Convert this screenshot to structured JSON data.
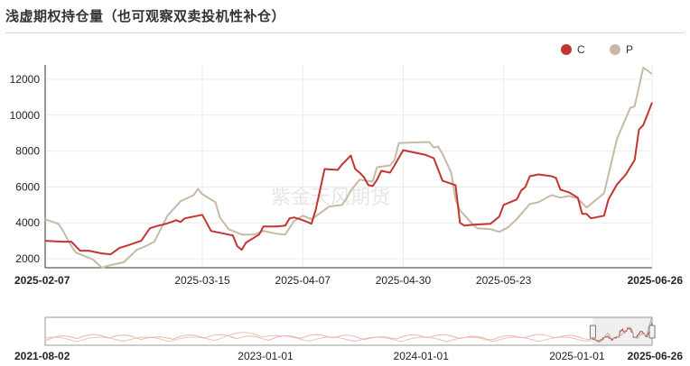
{
  "title": "浅虚期权持仓量（也可观察双卖投机性补仓）",
  "watermark": "紫金天风期货",
  "colors": {
    "C": "#c23531",
    "P": "#c8b9a6"
  },
  "chart_data": {
    "type": "line",
    "title": "浅虚期权持仓量（也可观察双卖投机性补仓）",
    "xlabel": "",
    "ylabel": "",
    "ylim": [
      1500,
      12800
    ],
    "yticks": [
      2000,
      4000,
      6000,
      8000,
      10000,
      12000
    ],
    "xlim": [
      "2025-02-07",
      "2025-06-26"
    ],
    "xticks": [
      "2025-02-07",
      "2025-03-15",
      "2025-04-07",
      "2025-04-30",
      "2025-05-23",
      "2025-06-26"
    ],
    "grid": true,
    "legend_position": "top-right",
    "series": [
      {
        "name": "C",
        "points": [
          [
            "2025-02-07",
            3000
          ],
          [
            "2025-02-11",
            2950
          ],
          [
            "2025-02-13",
            2950
          ],
          [
            "2025-02-14",
            2700
          ],
          [
            "2025-02-15",
            2450
          ],
          [
            "2025-02-17",
            2450
          ],
          [
            "2025-02-20",
            2300
          ],
          [
            "2025-02-22",
            2250
          ],
          [
            "2025-02-24",
            2600
          ],
          [
            "2025-02-26",
            2750
          ],
          [
            "2025-03-01",
            3000
          ],
          [
            "2025-03-03",
            3700
          ],
          [
            "2025-03-05",
            3850
          ],
          [
            "2025-03-06",
            3900
          ],
          [
            "2025-03-08",
            4050
          ],
          [
            "2025-03-09",
            4150
          ],
          [
            "2025-03-10",
            4050
          ],
          [
            "2025-03-11",
            4250
          ],
          [
            "2025-03-15",
            4450
          ],
          [
            "2025-03-17",
            3550
          ],
          [
            "2025-03-19",
            3450
          ],
          [
            "2025-03-22",
            3300
          ],
          [
            "2025-03-23",
            2700
          ],
          [
            "2025-03-24",
            2500
          ],
          [
            "2025-03-25",
            2900
          ],
          [
            "2025-03-28",
            3350
          ],
          [
            "2025-03-29",
            3800
          ],
          [
            "2025-04-01",
            3800
          ],
          [
            "2025-04-03",
            3850
          ],
          [
            "2025-04-04",
            4250
          ],
          [
            "2025-04-05",
            4300
          ],
          [
            "2025-04-07",
            4150
          ],
          [
            "2025-04-09",
            3950
          ],
          [
            "2025-04-10",
            4750
          ],
          [
            "2025-04-12",
            7000
          ],
          [
            "2025-04-15",
            6950
          ],
          [
            "2025-04-16",
            7250
          ],
          [
            "2025-04-18",
            7750
          ],
          [
            "2025-04-19",
            7000
          ],
          [
            "2025-04-20",
            6800
          ],
          [
            "2025-04-21",
            6550
          ],
          [
            "2025-04-22",
            6100
          ],
          [
            "2025-04-23",
            6050
          ],
          [
            "2025-04-24",
            6400
          ],
          [
            "2025-04-25",
            6900
          ],
          [
            "2025-04-27",
            6800
          ],
          [
            "2025-04-28",
            7200
          ],
          [
            "2025-04-30",
            8050
          ],
          [
            "2025-05-05",
            7800
          ],
          [
            "2025-05-07",
            7600
          ],
          [
            "2025-05-09",
            6350
          ],
          [
            "2025-05-12",
            6100
          ],
          [
            "2025-05-13",
            4000
          ],
          [
            "2025-05-14",
            3850
          ],
          [
            "2025-05-16",
            3900
          ],
          [
            "2025-05-20",
            3950
          ],
          [
            "2025-05-22",
            4350
          ],
          [
            "2025-05-23",
            5000
          ],
          [
            "2025-05-26",
            5300
          ],
          [
            "2025-05-27",
            5800
          ],
          [
            "2025-05-28",
            6000
          ],
          [
            "2025-05-29",
            6600
          ],
          [
            "2025-05-31",
            6700
          ],
          [
            "2025-06-03",
            6600
          ],
          [
            "2025-06-04",
            6500
          ],
          [
            "2025-06-05",
            5850
          ],
          [
            "2025-06-07",
            5700
          ],
          [
            "2025-06-09",
            5400
          ],
          [
            "2025-06-10",
            4500
          ],
          [
            "2025-06-11",
            4500
          ],
          [
            "2025-06-12",
            4250
          ],
          [
            "2025-06-15",
            4400
          ],
          [
            "2025-06-16",
            5300
          ],
          [
            "2025-06-18",
            6150
          ],
          [
            "2025-06-20",
            6700
          ],
          [
            "2025-06-22",
            7500
          ],
          [
            "2025-06-23",
            9200
          ],
          [
            "2025-06-24",
            9450
          ],
          [
            "2025-06-26",
            10700
          ]
        ]
      },
      {
        "name": "P",
        "points": [
          [
            "2025-02-07",
            4200
          ],
          [
            "2025-02-10",
            3950
          ],
          [
            "2025-02-11",
            3600
          ],
          [
            "2025-02-13",
            2700
          ],
          [
            "2025-02-14",
            2350
          ],
          [
            "2025-02-16",
            2150
          ],
          [
            "2025-02-18",
            1950
          ],
          [
            "2025-02-20",
            1500
          ],
          [
            "2025-02-22",
            1650
          ],
          [
            "2025-02-25",
            1800
          ],
          [
            "2025-02-28",
            2500
          ],
          [
            "2025-03-02",
            2700
          ],
          [
            "2025-03-04",
            2950
          ],
          [
            "2025-03-07",
            4400
          ],
          [
            "2025-03-10",
            5200
          ],
          [
            "2025-03-13",
            5550
          ],
          [
            "2025-03-14",
            5900
          ],
          [
            "2025-03-15",
            5600
          ],
          [
            "2025-03-18",
            5150
          ],
          [
            "2025-03-19",
            4300
          ],
          [
            "2025-03-21",
            3650
          ],
          [
            "2025-03-24",
            3350
          ],
          [
            "2025-03-27",
            3350
          ],
          [
            "2025-03-29",
            3550
          ],
          [
            "2025-04-01",
            3400
          ],
          [
            "2025-04-03",
            3350
          ],
          [
            "2025-04-05",
            4100
          ],
          [
            "2025-04-07",
            4400
          ],
          [
            "2025-04-09",
            4200
          ],
          [
            "2025-04-11",
            4550
          ],
          [
            "2025-04-13",
            4900
          ],
          [
            "2025-04-16",
            5000
          ],
          [
            "2025-04-17",
            5350
          ],
          [
            "2025-04-18",
            5800
          ],
          [
            "2025-04-20",
            6400
          ],
          [
            "2025-04-23",
            6300
          ],
          [
            "2025-04-24",
            7100
          ],
          [
            "2025-04-27",
            7200
          ],
          [
            "2025-04-28",
            7500
          ],
          [
            "2025-04-29",
            8450
          ],
          [
            "2025-05-05",
            8500
          ],
          [
            "2025-05-06",
            8500
          ],
          [
            "2025-05-07",
            8200
          ],
          [
            "2025-05-08",
            8250
          ],
          [
            "2025-05-09",
            7850
          ],
          [
            "2025-05-11",
            6800
          ],
          [
            "2025-05-12",
            5300
          ],
          [
            "2025-05-13",
            4700
          ],
          [
            "2025-05-16",
            3900
          ],
          [
            "2025-05-17",
            3700
          ],
          [
            "2025-05-20",
            3650
          ],
          [
            "2025-05-22",
            3500
          ],
          [
            "2025-05-24",
            3750
          ],
          [
            "2025-05-26",
            4200
          ],
          [
            "2025-05-29",
            5050
          ],
          [
            "2025-05-31",
            5150
          ],
          [
            "2025-06-03",
            5550
          ],
          [
            "2025-06-05",
            5400
          ],
          [
            "2025-06-07",
            5500
          ],
          [
            "2025-06-09",
            5350
          ],
          [
            "2025-06-11",
            4850
          ],
          [
            "2025-06-13",
            5250
          ],
          [
            "2025-06-15",
            5650
          ],
          [
            "2025-06-18",
            8700
          ],
          [
            "2025-06-21",
            10400
          ],
          [
            "2025-06-22",
            10500
          ],
          [
            "2025-06-24",
            12650
          ],
          [
            "2025-06-26",
            12300
          ]
        ]
      }
    ],
    "navigator": {
      "xlim": [
        "2021-08-02",
        "2025-06-26"
      ],
      "xticks": [
        "2021-08-02",
        "2023-01-01",
        "2024-01-01",
        "2025-01-01",
        "2025-06-26"
      ],
      "selected_range": [
        "2025-02-07",
        "2025-06-26"
      ]
    }
  },
  "legend": [
    {
      "label": "C",
      "color": "#c23531"
    },
    {
      "label": "P",
      "color": "#c8b9a6"
    }
  ]
}
